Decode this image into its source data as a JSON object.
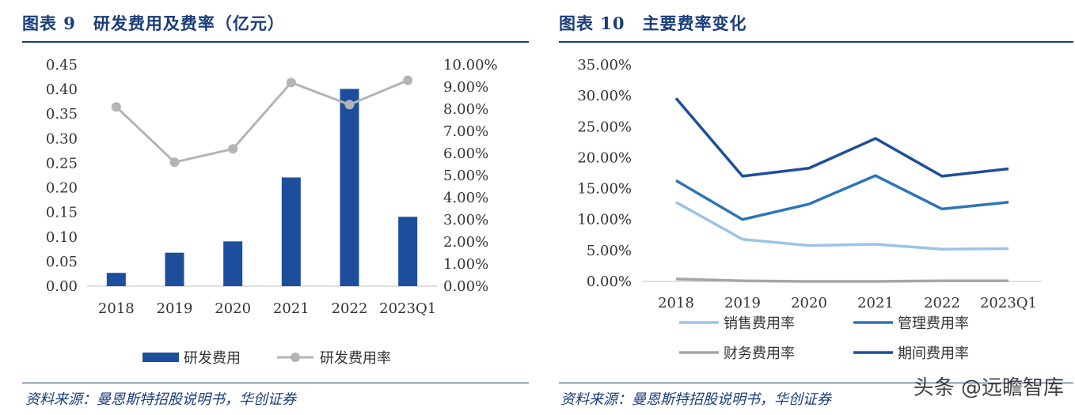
{
  "left": {
    "title": "图表 9　研发费用及费率（亿元）",
    "source": "资料来源：曼恩斯特招股说明书，华创证券"
  },
  "right": {
    "title": "图表 10　主要费率变化",
    "source": "资料来源：曼恩斯特招股说明书，华创证券"
  },
  "watermark": "头条 @远瞻智库",
  "chart_data": [
    {
      "type": "bar",
      "title": "图表 9　研发费用及费率（亿元）",
      "categories": [
        "2018",
        "2019",
        "2020",
        "2021",
        "2022",
        "2023Q1"
      ],
      "series": [
        {
          "name": "研发费用",
          "type": "bar",
          "axis": "left",
          "color": "#1c4e9c",
          "values": [
            0.027,
            0.068,
            0.091,
            0.221,
            0.401,
            0.141
          ]
        },
        {
          "name": "研发费用率",
          "type": "line",
          "axis": "right",
          "color": "#b4b4b4",
          "values": [
            8.1,
            5.6,
            6.2,
            9.2,
            8.2,
            9.3
          ]
        }
      ],
      "ylim_left": [
        0,
        0.45
      ],
      "yticks_left": [
        "0.00",
        "0.05",
        "0.10",
        "0.15",
        "0.20",
        "0.25",
        "0.30",
        "0.35",
        "0.40",
        "0.45"
      ],
      "ylim_right": [
        0,
        10
      ],
      "yticks_right": [
        "0.00%",
        "1.00%",
        "2.00%",
        "3.00%",
        "4.00%",
        "5.00%",
        "6.00%",
        "7.00%",
        "8.00%",
        "9.00%",
        "10.00%"
      ],
      "legend": "bottom"
    },
    {
      "type": "line",
      "title": "图表 10　主要费率变化",
      "categories": [
        "2018",
        "2019",
        "2020",
        "2021",
        "2022",
        "2023Q1"
      ],
      "series": [
        {
          "name": "销售费用率",
          "color": "#9dc3e6",
          "values": [
            12.8,
            6.8,
            5.8,
            6.0,
            5.2,
            5.3
          ]
        },
        {
          "name": "管理费用率",
          "color": "#2e75b6",
          "values": [
            16.3,
            10.0,
            12.5,
            17.1,
            11.7,
            12.8
          ]
        },
        {
          "name": "财务费用率",
          "color": "#a6a6a6",
          "values": [
            0.4,
            0.1,
            0.0,
            0.0,
            0.1,
            0.1
          ]
        },
        {
          "name": "期间费用率",
          "color": "#1f4e99",
          "values": [
            29.6,
            17.0,
            18.3,
            23.1,
            17.0,
            18.2
          ]
        }
      ],
      "ylim": [
        0,
        35
      ],
      "yticks": [
        "0.00%",
        "5.00%",
        "10.00%",
        "15.00%",
        "20.00%",
        "25.00%",
        "30.00%",
        "35.00%"
      ],
      "legend": "bottom"
    }
  ]
}
